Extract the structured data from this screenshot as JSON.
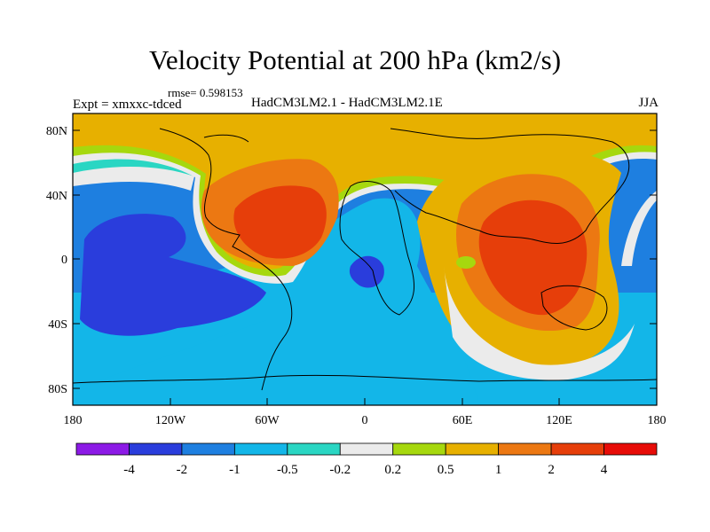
{
  "title": "Velocity Potential at 200 hPa (km2/s)",
  "rmse_label": "rmse= 0.598153",
  "experiment_label": "Expt = xmxxc-tdced",
  "comparison_label": "HadCM3LM2.1 - HadCM3LM2.1E",
  "season": "JJA",
  "map": {
    "projection": "cylindrical equidistant",
    "lon_range": [
      -180,
      180
    ],
    "lat_range": [
      -90,
      90
    ],
    "lat_tick_labels": [
      "80N",
      "40N",
      "0",
      "40S",
      "80S"
    ],
    "lat_tick_values": [
      80,
      40,
      0,
      -40,
      -80
    ],
    "lon_tick_labels": [
      "180",
      "120W",
      "60W",
      "0",
      "60E",
      "120E",
      "180"
    ],
    "lon_tick_values": [
      -180,
      -120,
      -60,
      0,
      60,
      120,
      180
    ],
    "features": [
      "positive maximum over Atlantic / Central America",
      "positive maximum over Indian Ocean / Maritime Continent",
      "negative minimum over central Pacific",
      "negative minimum over Gulf of Guinea"
    ]
  },
  "colorbar": {
    "labels": [
      "-4",
      "-2",
      "-1",
      "-0.5",
      "-0.2",
      "0.2",
      "0.5",
      "1",
      "2",
      "4"
    ],
    "colors": [
      "#8c1ae6",
      "#2a3ddc",
      "#1e7fe0",
      "#13b6e8",
      "#2ad6c3",
      "#ebebeb",
      "#a6d80e",
      "#e7b000",
      "#ec7812",
      "#e63e0a",
      "#e70c08"
    ]
  }
}
